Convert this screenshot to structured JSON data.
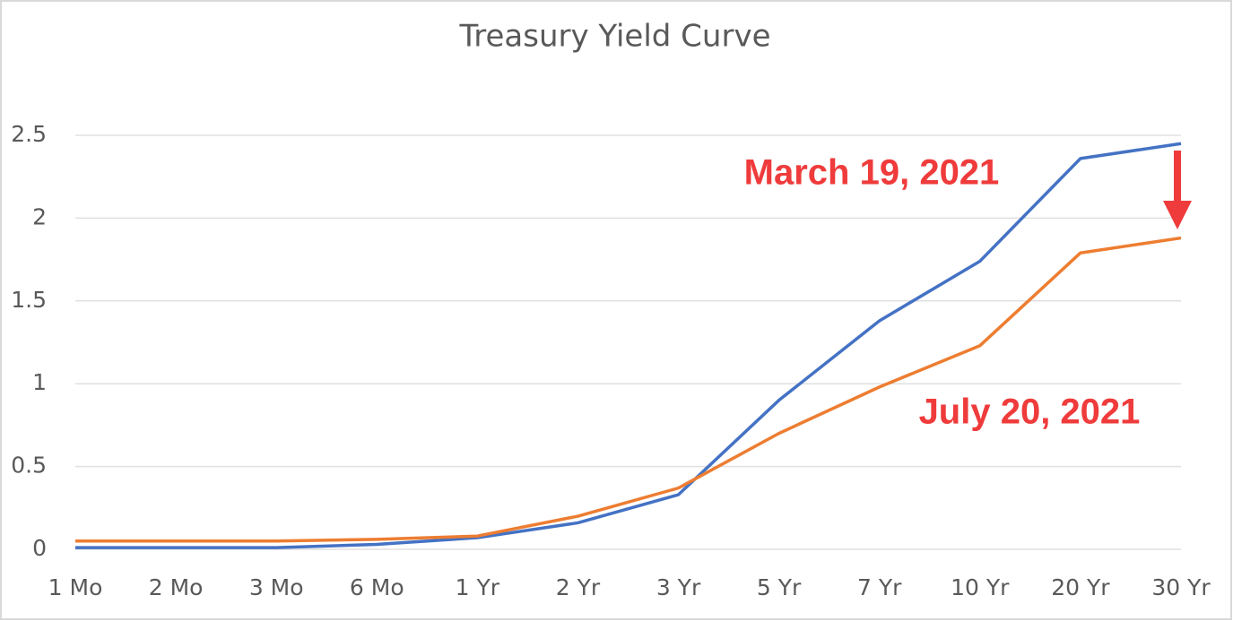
{
  "chart_data": {
    "type": "line",
    "title": "Treasury Yield Curve",
    "categories": [
      "1 Mo",
      "2 Mo",
      "3 Mo",
      "6 Mo",
      "1 Yr",
      "2 Yr",
      "3 Yr",
      "5 Yr",
      "7 Yr",
      "10 Yr",
      "20 Yr",
      "30 Yr"
    ],
    "series": [
      {
        "name": "March 19, 2021",
        "color": "#4472c4",
        "values": [
          0.01,
          0.01,
          0.01,
          0.03,
          0.07,
          0.16,
          0.33,
          0.9,
          1.38,
          1.74,
          2.36,
          2.45
        ]
      },
      {
        "name": "July 20, 2021",
        "color": "#ed7d31",
        "values": [
          0.05,
          0.05,
          0.05,
          0.06,
          0.08,
          0.2,
          0.37,
          0.7,
          0.98,
          1.23,
          1.79,
          1.88
        ]
      }
    ],
    "ylim": [
      0,
      2.5
    ],
    "yticks": [
      0,
      0.5,
      1,
      1.5,
      2,
      2.5
    ],
    "grid": true
  }
}
